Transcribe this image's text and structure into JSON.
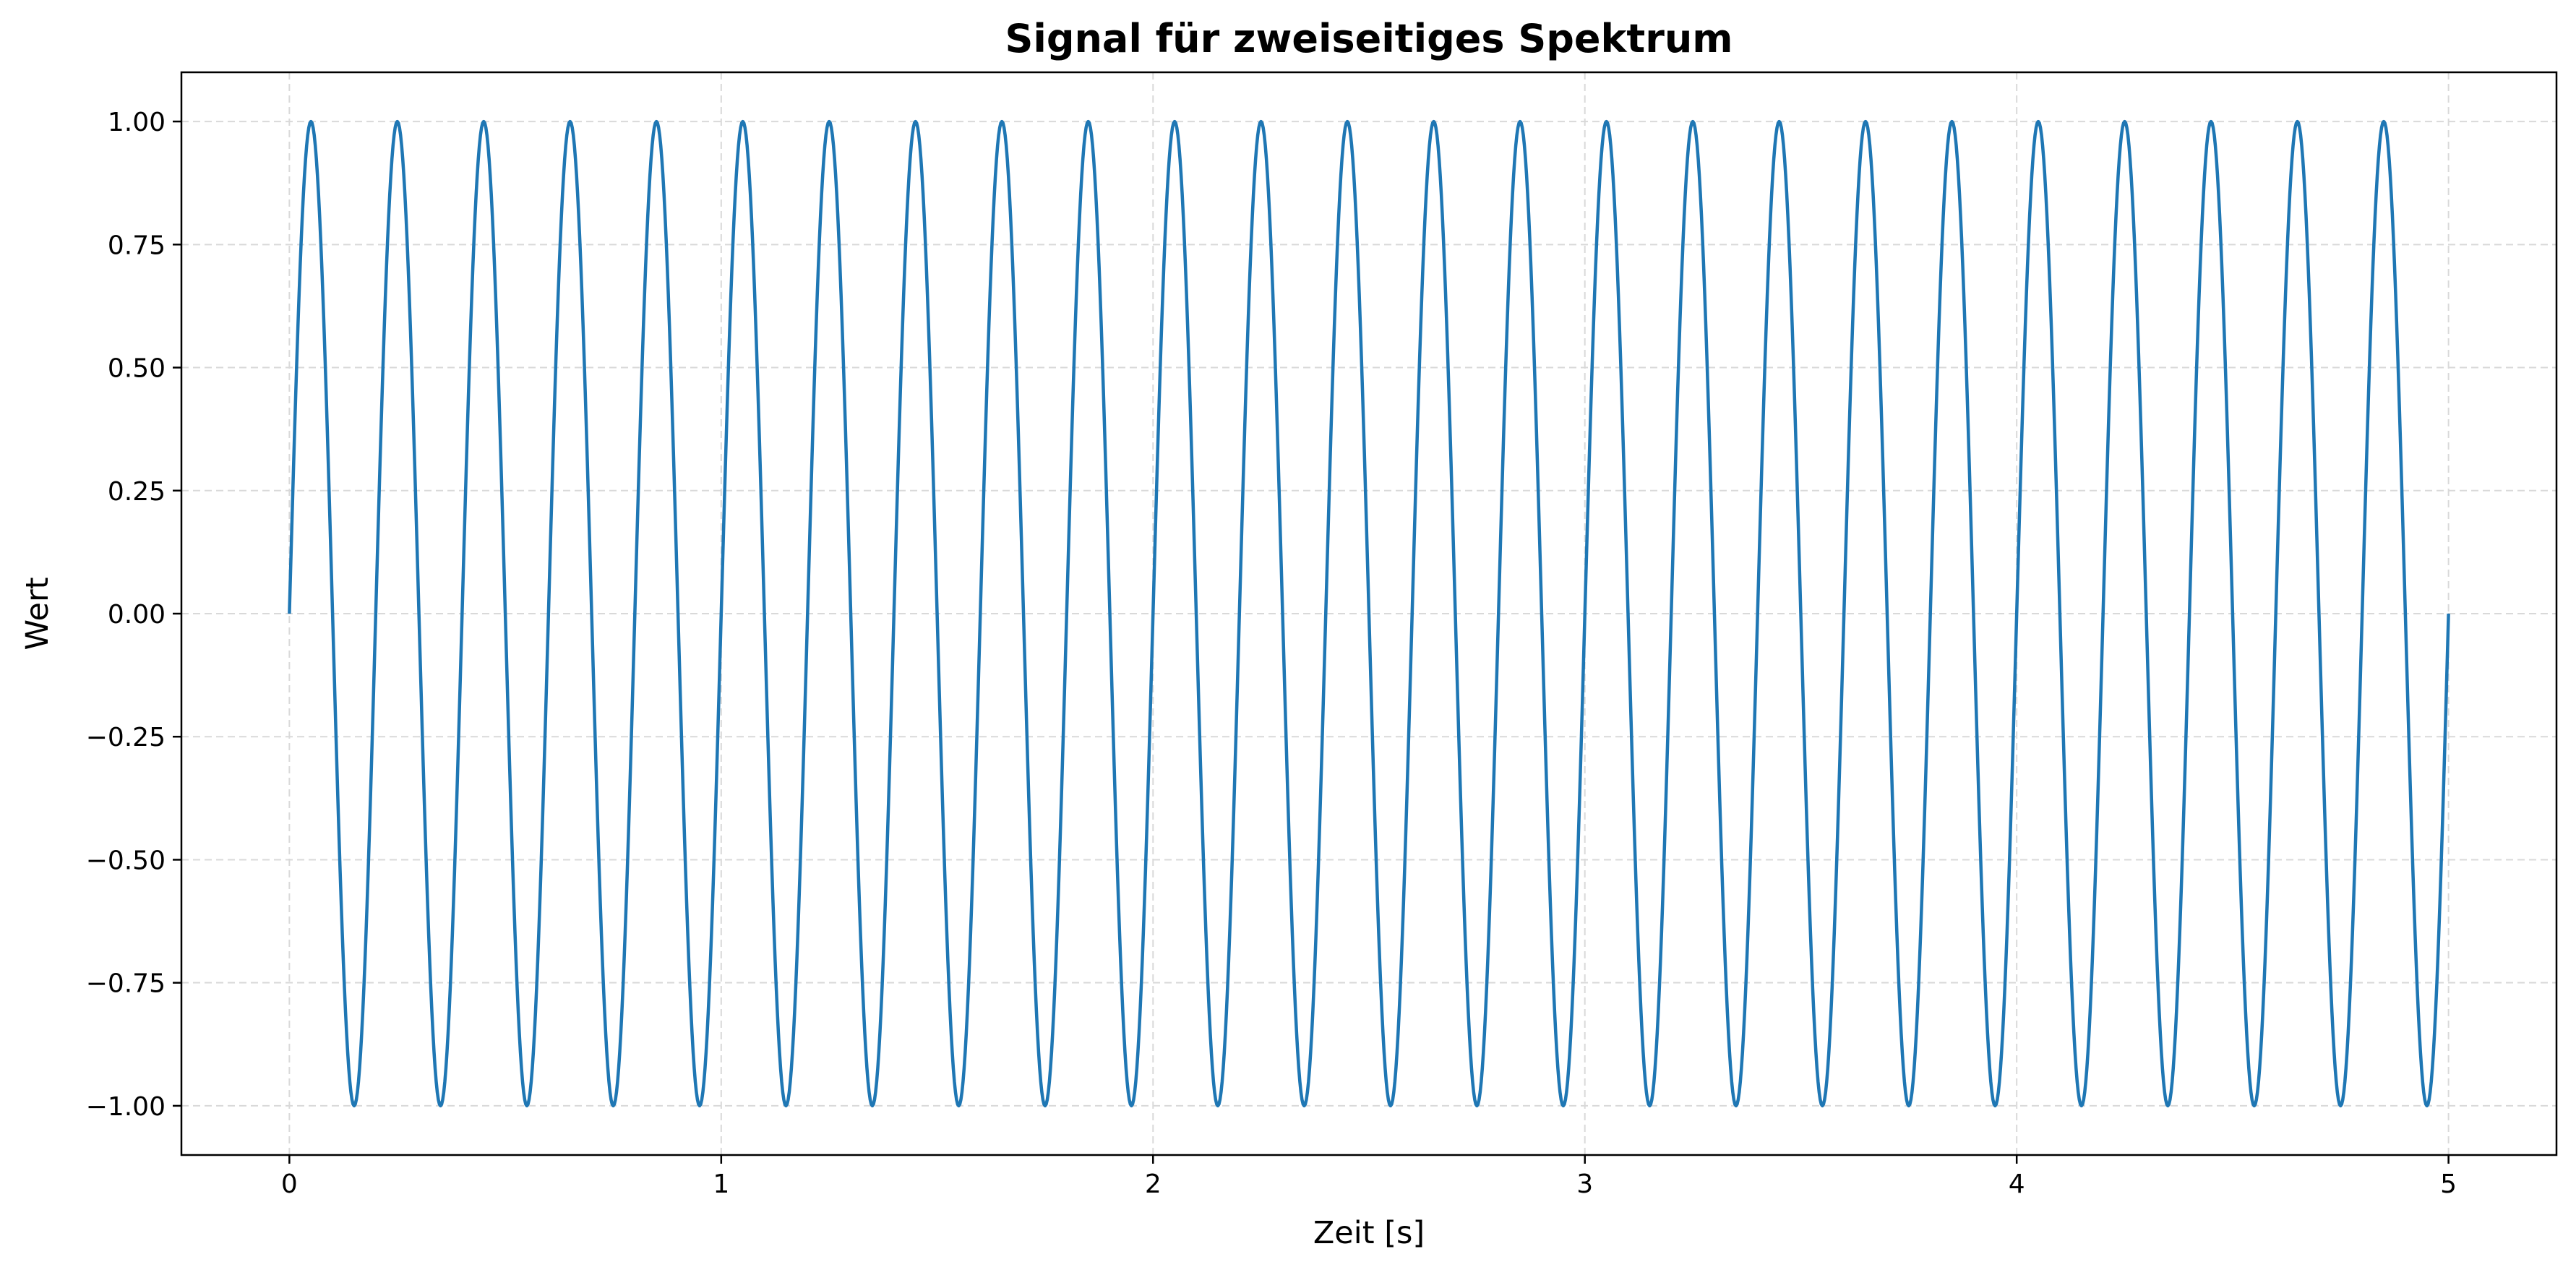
{
  "chart_data": {
    "type": "line",
    "title": "Signal für zweiseitiges Spektrum",
    "xlabel": "Zeit [s]",
    "ylabel": "Wert",
    "xlim": [
      -0.25,
      5.25
    ],
    "ylim": [
      -1.1,
      1.1
    ],
    "xticks": [
      0,
      1,
      2,
      3,
      4,
      5
    ],
    "xtick_labels": [
      "0",
      "1",
      "2",
      "3",
      "4",
      "5"
    ],
    "yticks": [
      1.0,
      0.75,
      0.5,
      0.25,
      0.0,
      -0.25,
      -0.5,
      -0.75,
      -1.0
    ],
    "ytick_labels": [
      "1.00",
      "0.75",
      "0.50",
      "0.25",
      "0.00",
      "−0.25",
      "−0.50",
      "−0.75",
      "−1.00"
    ],
    "grid": true,
    "grid_style": "dashed",
    "line_color": "#1f77b4",
    "series": [
      {
        "function": "sine",
        "amplitude": 1.0,
        "frequency_hz": 5,
        "phase": 0.0,
        "x_start": 0,
        "x_end": 5,
        "samples": 2001
      }
    ]
  }
}
